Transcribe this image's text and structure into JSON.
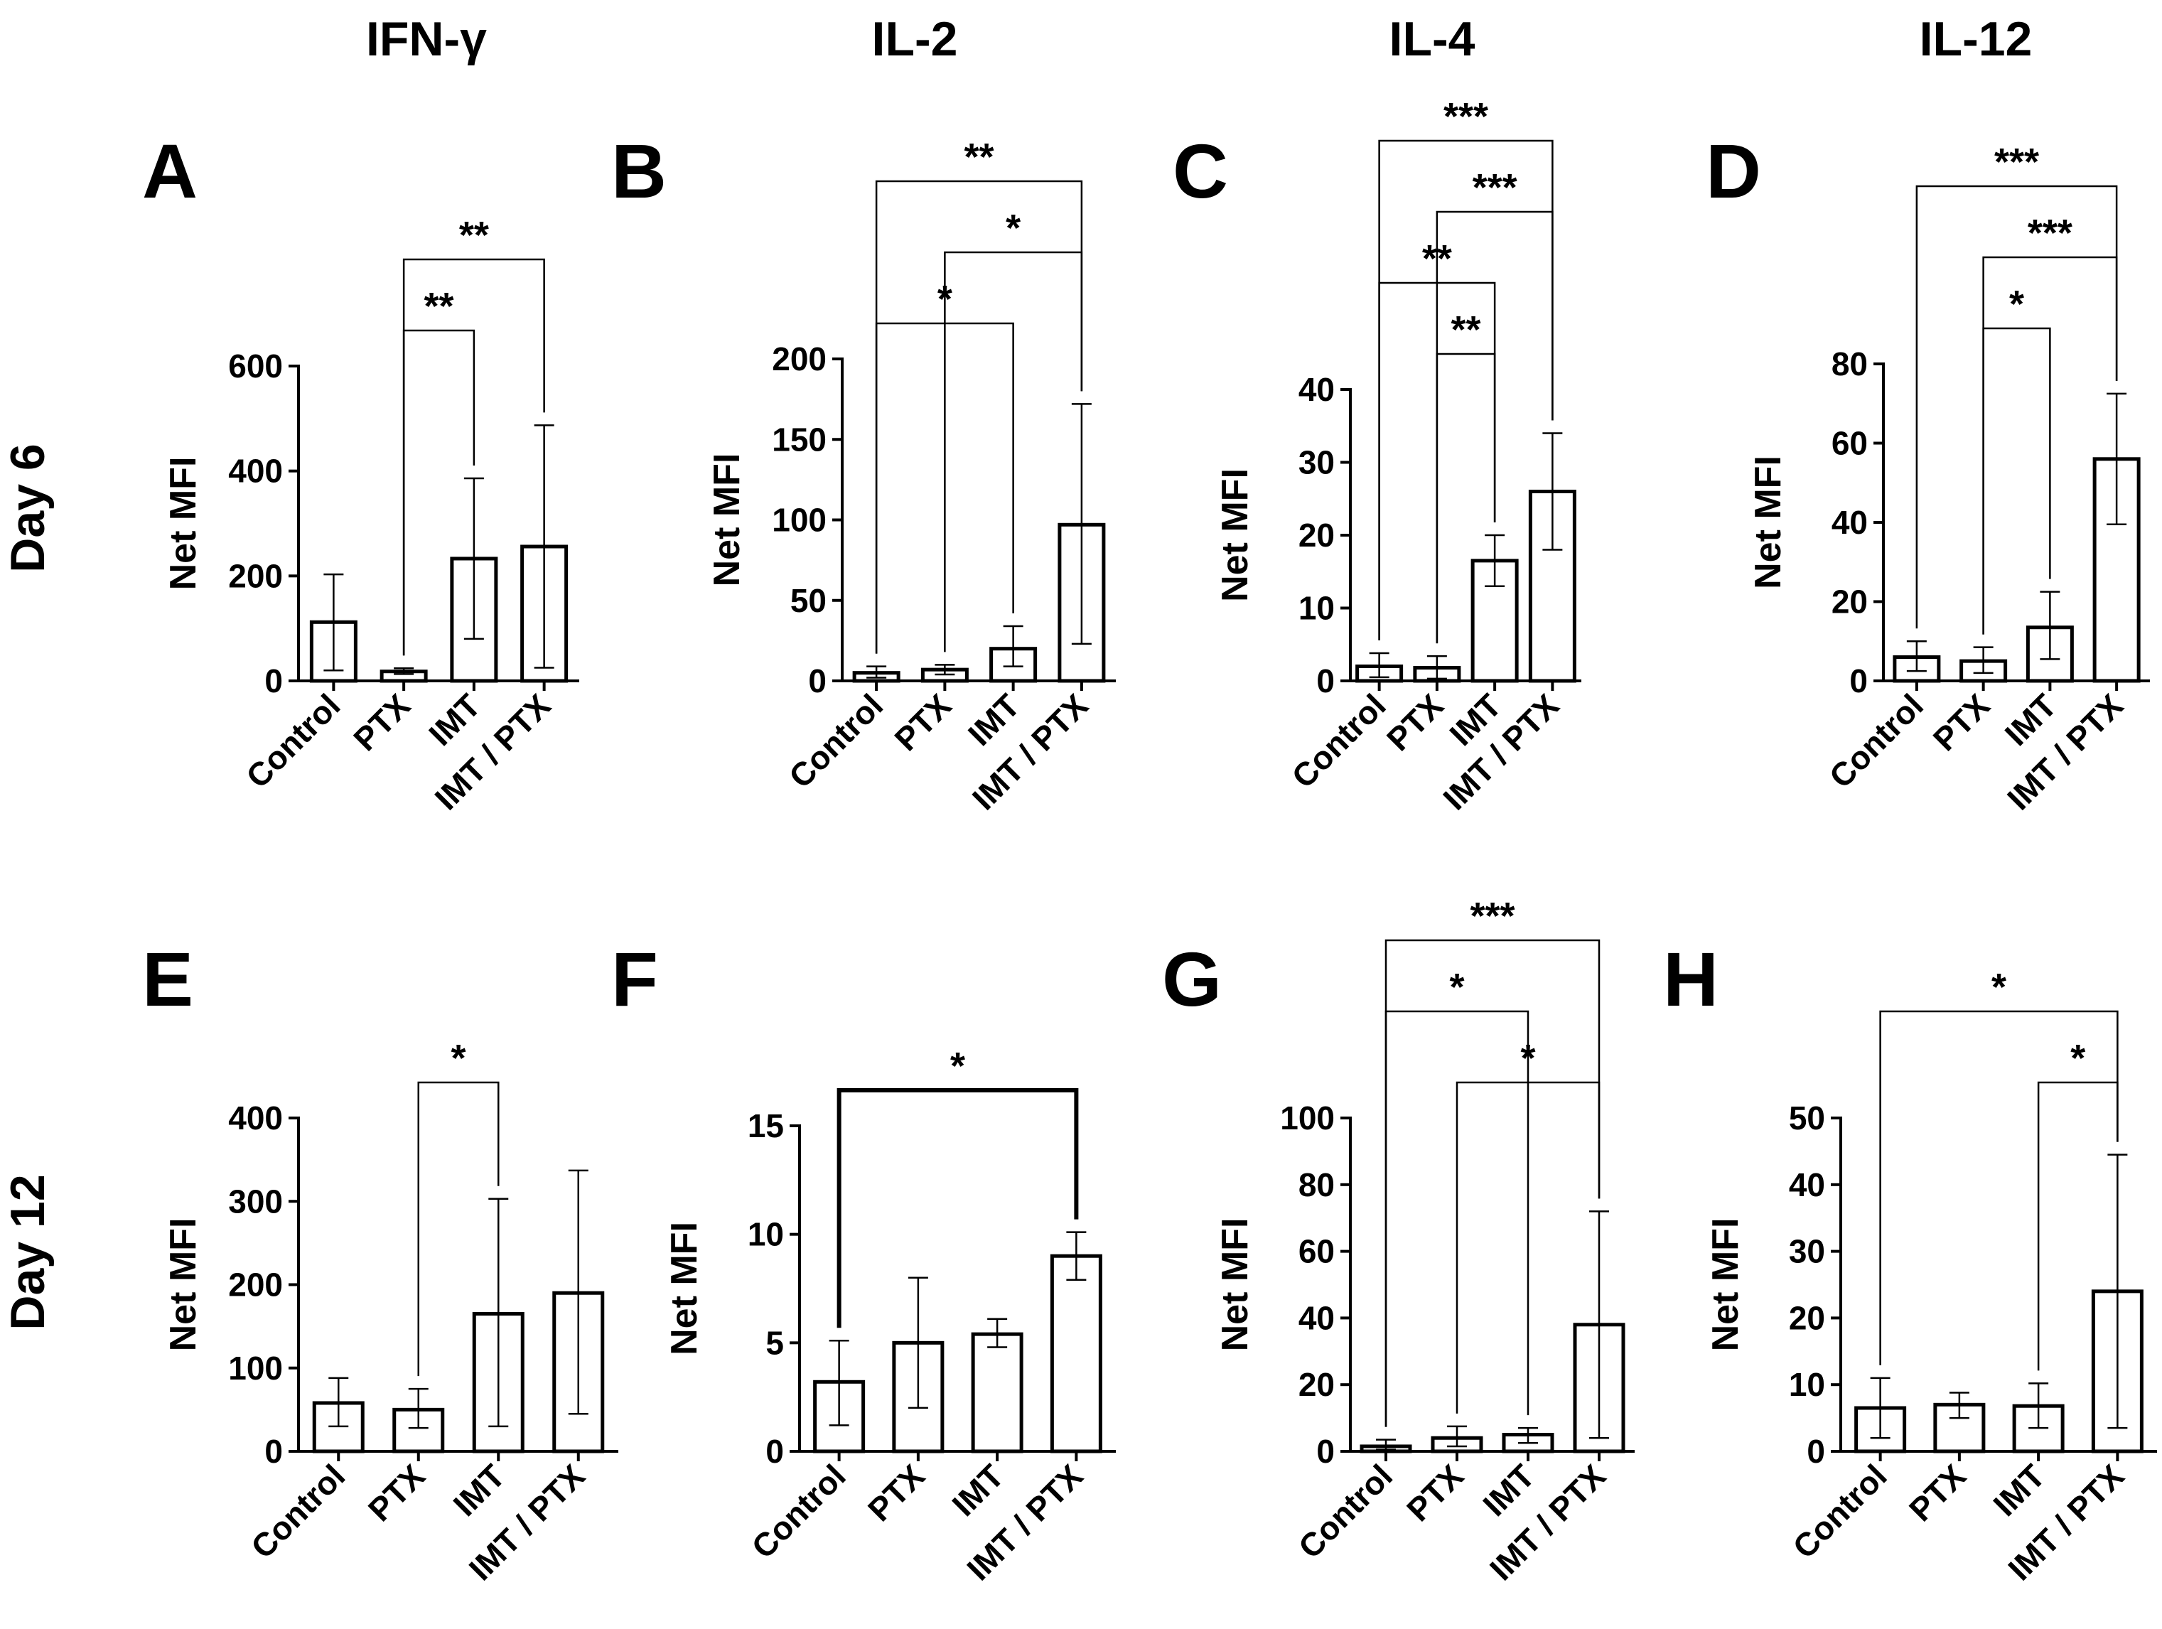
{
  "column_headers": [
    "IFN-γ",
    "IL-2",
    "IL-4",
    "IL-12"
  ],
  "row_labels": [
    "Day 6",
    "Day 12"
  ],
  "chart_data": [
    {
      "panel": "A",
      "type": "bar",
      "row": "Day 6",
      "column": "IFN-γ",
      "categories": [
        "Control",
        "PTX",
        "IMT",
        "IMT / PTX"
      ],
      "values": [
        112,
        18,
        233,
        256
      ],
      "error": [
        [
          20,
          203
        ],
        [
          13,
          24
        ],
        [
          80,
          386
        ],
        [
          25,
          487
        ]
      ],
      "ylabel": "Net MFI",
      "ylim": [
        0,
        600
      ],
      "yticks": [
        0,
        200,
        400,
        600
      ],
      "brackets": [
        {
          "from": 1,
          "to": 2,
          "label": "**",
          "level": 0
        },
        {
          "from": 1,
          "to": 3,
          "label": "**",
          "level": 1
        }
      ]
    },
    {
      "panel": "B",
      "type": "bar",
      "row": "Day 6",
      "column": "IL-2",
      "categories": [
        "Control",
        "PTX",
        "IMT",
        "IMT / PTX"
      ],
      "values": [
        5,
        7,
        20,
        97
      ],
      "error": [
        [
          2,
          9
        ],
        [
          4,
          10
        ],
        [
          9,
          34
        ],
        [
          23,
          172
        ]
      ],
      "ylabel": "Net MFI",
      "ylim": [
        0,
        200
      ],
      "yticks": [
        0,
        50,
        100,
        150,
        200
      ],
      "brackets": [
        {
          "from": 0,
          "to": 2,
          "label": "*",
          "level": 0
        },
        {
          "from": 1,
          "to": 3,
          "label": "*",
          "level": 1
        },
        {
          "from": 0,
          "to": 3,
          "label": "**",
          "level": 2
        }
      ]
    },
    {
      "panel": "C",
      "type": "bar",
      "row": "Day 6",
      "column": "IL-4",
      "categories": [
        "Control",
        "PTX",
        "IMT",
        "IMT / PTX"
      ],
      "values": [
        2,
        1.8,
        16.5,
        26
      ],
      "error": [
        [
          0.5,
          3.8
        ],
        [
          0.3,
          3.4
        ],
        [
          13,
          20
        ],
        [
          18,
          34
        ]
      ],
      "ylabel": "Net MFI",
      "ylim": [
        0,
        40
      ],
      "yticks": [
        0,
        10,
        20,
        30,
        40
      ],
      "brackets": [
        {
          "from": 1,
          "to": 2,
          "label": "**",
          "level": 0
        },
        {
          "from": 0,
          "to": 2,
          "label": "**",
          "level": 1
        },
        {
          "from": 1,
          "to": 3,
          "label": "***",
          "level": 2
        },
        {
          "from": 0,
          "to": 3,
          "label": "***",
          "level": 3
        }
      ]
    },
    {
      "panel": "D",
      "type": "bar",
      "row": "Day 6",
      "column": "IL-12",
      "categories": [
        "Control",
        "PTX",
        "IMT",
        "IMT / PTX"
      ],
      "values": [
        6,
        5,
        13.5,
        56
      ],
      "error": [
        [
          2.5,
          10
        ],
        [
          2,
          8.5
        ],
        [
          5.5,
          22.5
        ],
        [
          39.5,
          72.5
        ]
      ],
      "ylabel": "Net MFI",
      "ylim": [
        0,
        80
      ],
      "yticks": [
        0,
        20,
        40,
        60,
        80
      ],
      "brackets": [
        {
          "from": 1,
          "to": 2,
          "label": "*",
          "level": 0
        },
        {
          "from": 1,
          "to": 3,
          "label": "***",
          "level": 1
        },
        {
          "from": 0,
          "to": 3,
          "label": "***",
          "level": 2
        }
      ]
    },
    {
      "panel": "E",
      "type": "bar",
      "row": "Day 12",
      "column": "IFN-γ",
      "categories": [
        "Control",
        "PTX",
        "IMT",
        "IMT / PTX"
      ],
      "values": [
        58,
        50,
        165,
        190
      ],
      "error": [
        [
          30,
          88
        ],
        [
          28,
          75
        ],
        [
          30,
          303
        ],
        [
          45,
          337
        ]
      ],
      "ylabel": "Net MFI",
      "ylim": [
        0,
        400
      ],
      "yticks": [
        0,
        100,
        200,
        300,
        400
      ],
      "brackets": [
        {
          "from": 1,
          "to": 2,
          "label": "*",
          "level": 0
        }
      ]
    },
    {
      "panel": "F",
      "type": "bar",
      "row": "Day 12",
      "column": "IL-2",
      "categories": [
        "Control",
        "PTX",
        "IMT",
        "IMT / PTX"
      ],
      "values": [
        3.2,
        5,
        5.4,
        9
      ],
      "error": [
        [
          1.2,
          5.1
        ],
        [
          2,
          8
        ],
        [
          4.8,
          6.1
        ],
        [
          7.9,
          10.1
        ]
      ],
      "ylabel": "Net MFI",
      "ylim": [
        0,
        15
      ],
      "yticks": [
        0,
        5,
        10,
        15
      ],
      "brackets": [
        {
          "from": 0,
          "to": 3,
          "label": "*",
          "level": 0,
          "heavy": true
        }
      ]
    },
    {
      "panel": "G",
      "type": "bar",
      "row": "Day 12",
      "column": "IL-4",
      "categories": [
        "Control",
        "PTX",
        "IMT",
        "IMT / PTX"
      ],
      "values": [
        1.5,
        4,
        5,
        38
      ],
      "error": [
        [
          0.5,
          3.5
        ],
        [
          1.5,
          7.5
        ],
        [
          2.5,
          7
        ],
        [
          4,
          72
        ]
      ],
      "ylabel": "Net MFI",
      "ylim": [
        0,
        100
      ],
      "yticks": [
        0,
        20,
        40,
        60,
        80,
        100
      ],
      "brackets": [
        {
          "from": 1,
          "to": 3,
          "label": "*",
          "level": 0
        },
        {
          "from": 0,
          "to": 2,
          "label": "*",
          "level": 1
        },
        {
          "from": 0,
          "to": 3,
          "label": "***",
          "level": 2
        }
      ]
    },
    {
      "panel": "H",
      "type": "bar",
      "row": "Day 12",
      "column": "IL-12",
      "categories": [
        "Control",
        "PTX",
        "IMT",
        "IMT / PTX"
      ],
      "values": [
        6.5,
        7,
        6.8,
        24
      ],
      "error": [
        [
          2,
          11
        ],
        [
          5,
          8.8
        ],
        [
          3.5,
          10.2
        ],
        [
          3.5,
          44.5
        ]
      ],
      "ylabel": "Net MFI",
      "ylim": [
        0,
        50
      ],
      "yticks": [
        0,
        10,
        20,
        30,
        40,
        50
      ],
      "brackets": [
        {
          "from": 2,
          "to": 3,
          "label": "*",
          "level": 0
        },
        {
          "from": 0,
          "to": 3,
          "label": "*",
          "level": 1
        }
      ]
    }
  ]
}
